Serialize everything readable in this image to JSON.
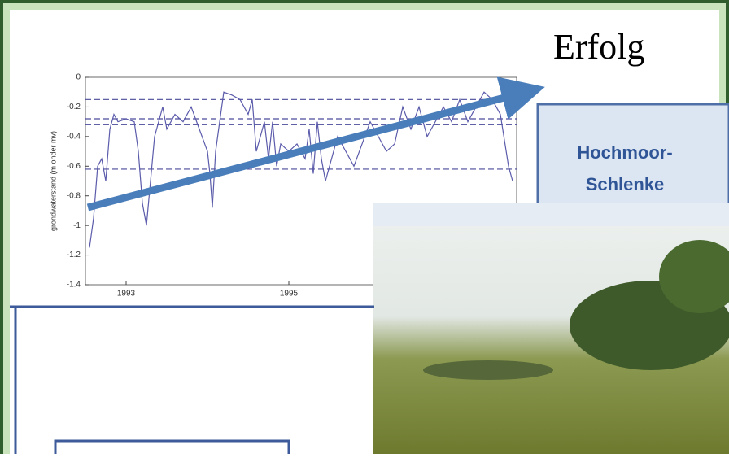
{
  "title": "Erfolg",
  "box_label": [
    "Hochmoor-",
    "Schlenke"
  ],
  "chart_data": {
    "type": "line",
    "y_label": "grondwaterstand (m onder mv)",
    "x": [
      1992.55,
      1992.6,
      1992.65,
      1992.7,
      1992.75,
      1992.8,
      1992.85,
      1992.9,
      1993.0,
      1993.1,
      1993.15,
      1993.2,
      1993.25,
      1993.3,
      1993.35,
      1993.4,
      1993.45,
      1993.5,
      1993.6,
      1993.7,
      1993.8,
      1993.9,
      1994.0,
      1994.03,
      1994.06,
      1994.1,
      1994.15,
      1994.2,
      1994.3,
      1994.4,
      1994.5,
      1994.55,
      1994.6,
      1994.7,
      1994.75,
      1994.8,
      1994.85,
      1994.9,
      1995.0,
      1995.1,
      1995.2,
      1995.25,
      1995.3,
      1995.35,
      1995.4,
      1995.45,
      1995.6,
      1995.8,
      1996.0,
      1996.2,
      1996.3,
      1996.4,
      1996.5,
      1996.6,
      1996.7,
      1996.8,
      1996.9,
      1997.0,
      1997.1,
      1997.2,
      1997.3,
      1997.4,
      1997.5,
      1997.6,
      1997.7,
      1997.75
    ],
    "series": [
      {
        "color": "#5b5bab",
        "values": [
          -1.15,
          -0.95,
          -0.6,
          -0.55,
          -0.7,
          -0.35,
          -0.25,
          -0.3,
          -0.28,
          -0.3,
          -0.5,
          -0.85,
          -1.0,
          -0.7,
          -0.4,
          -0.3,
          -0.2,
          -0.35,
          -0.25,
          -0.3,
          -0.2,
          -0.35,
          -0.5,
          -0.65,
          -0.88,
          -0.5,
          -0.3,
          -0.1,
          -0.12,
          -0.15,
          -0.25,
          -0.15,
          -0.5,
          -0.3,
          -0.55,
          -0.3,
          -0.6,
          -0.45,
          -0.5,
          -0.45,
          -0.55,
          -0.35,
          -0.65,
          -0.3,
          -0.55,
          -0.7,
          -0.4,
          -0.6,
          -0.3,
          -0.5,
          -0.45,
          -0.2,
          -0.35,
          -0.2,
          -0.4,
          -0.3,
          -0.2,
          -0.3,
          -0.15,
          -0.3,
          -0.2,
          -0.1,
          -0.15,
          -0.25,
          -0.6,
          -0.7
        ]
      }
    ],
    "reference_lines": [
      -0.15,
      -0.28,
      -0.32,
      -0.62
    ],
    "xlim": [
      1992.5,
      1997.8
    ],
    "xticks": [
      1993,
      1995
    ],
    "ylim": [
      -1.4,
      0
    ],
    "yticks": [
      0,
      -0.2,
      -0.4,
      -0.6,
      -0.8,
      -1,
      -1.2,
      -1.4
    ]
  }
}
